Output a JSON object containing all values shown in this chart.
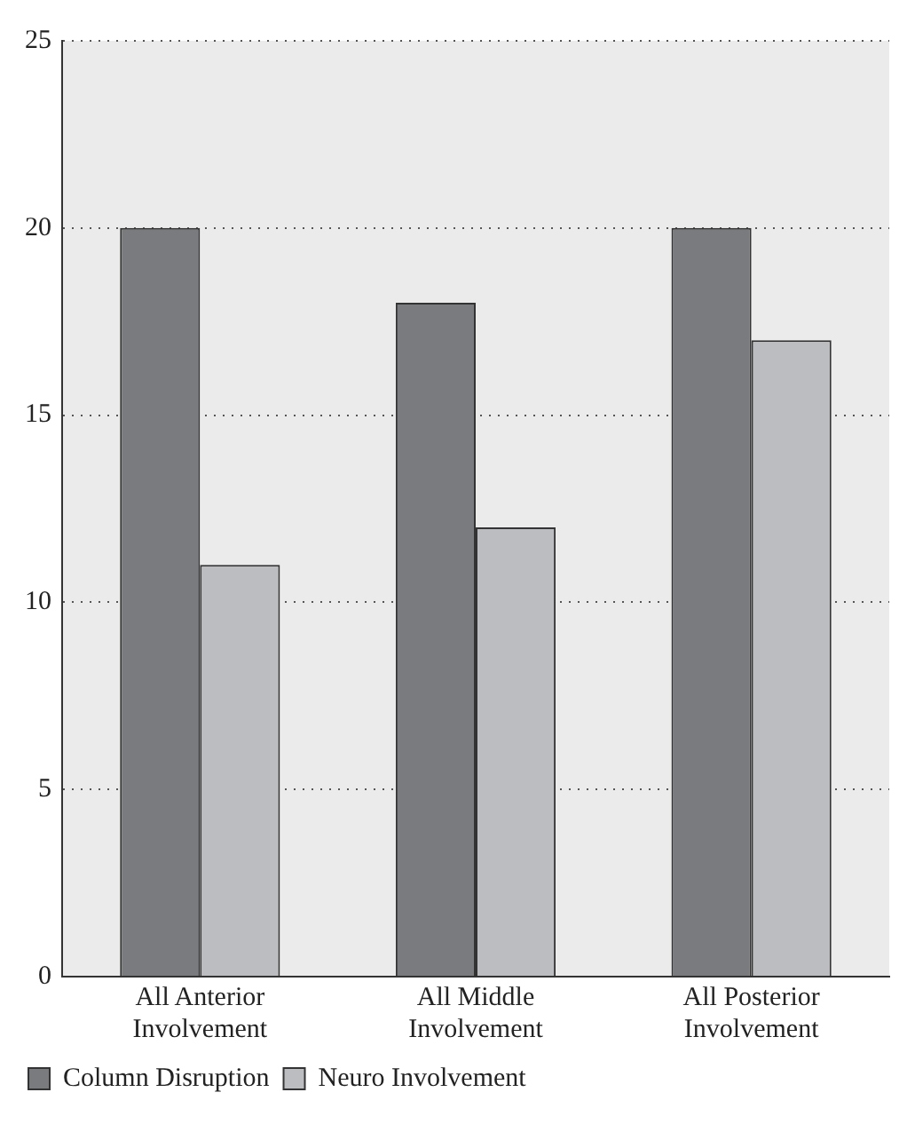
{
  "chart_data": {
    "type": "bar",
    "categories": [
      "All Anterior Involvement",
      "All Middle Involvement",
      "All Posterior Involvement"
    ],
    "series": [
      {
        "name": "Column Disruption",
        "color": "#7a7b7e",
        "values": [
          20,
          18,
          20
        ]
      },
      {
        "name": "Neuro Involvement",
        "color": "#bcbdc1",
        "values": [
          11,
          12,
          17
        ]
      }
    ],
    "ylim": [
      0,
      25
    ],
    "yticks": [
      0,
      5,
      10,
      15,
      20,
      25
    ],
    "grid": "y",
    "legend": "bottom left"
  }
}
